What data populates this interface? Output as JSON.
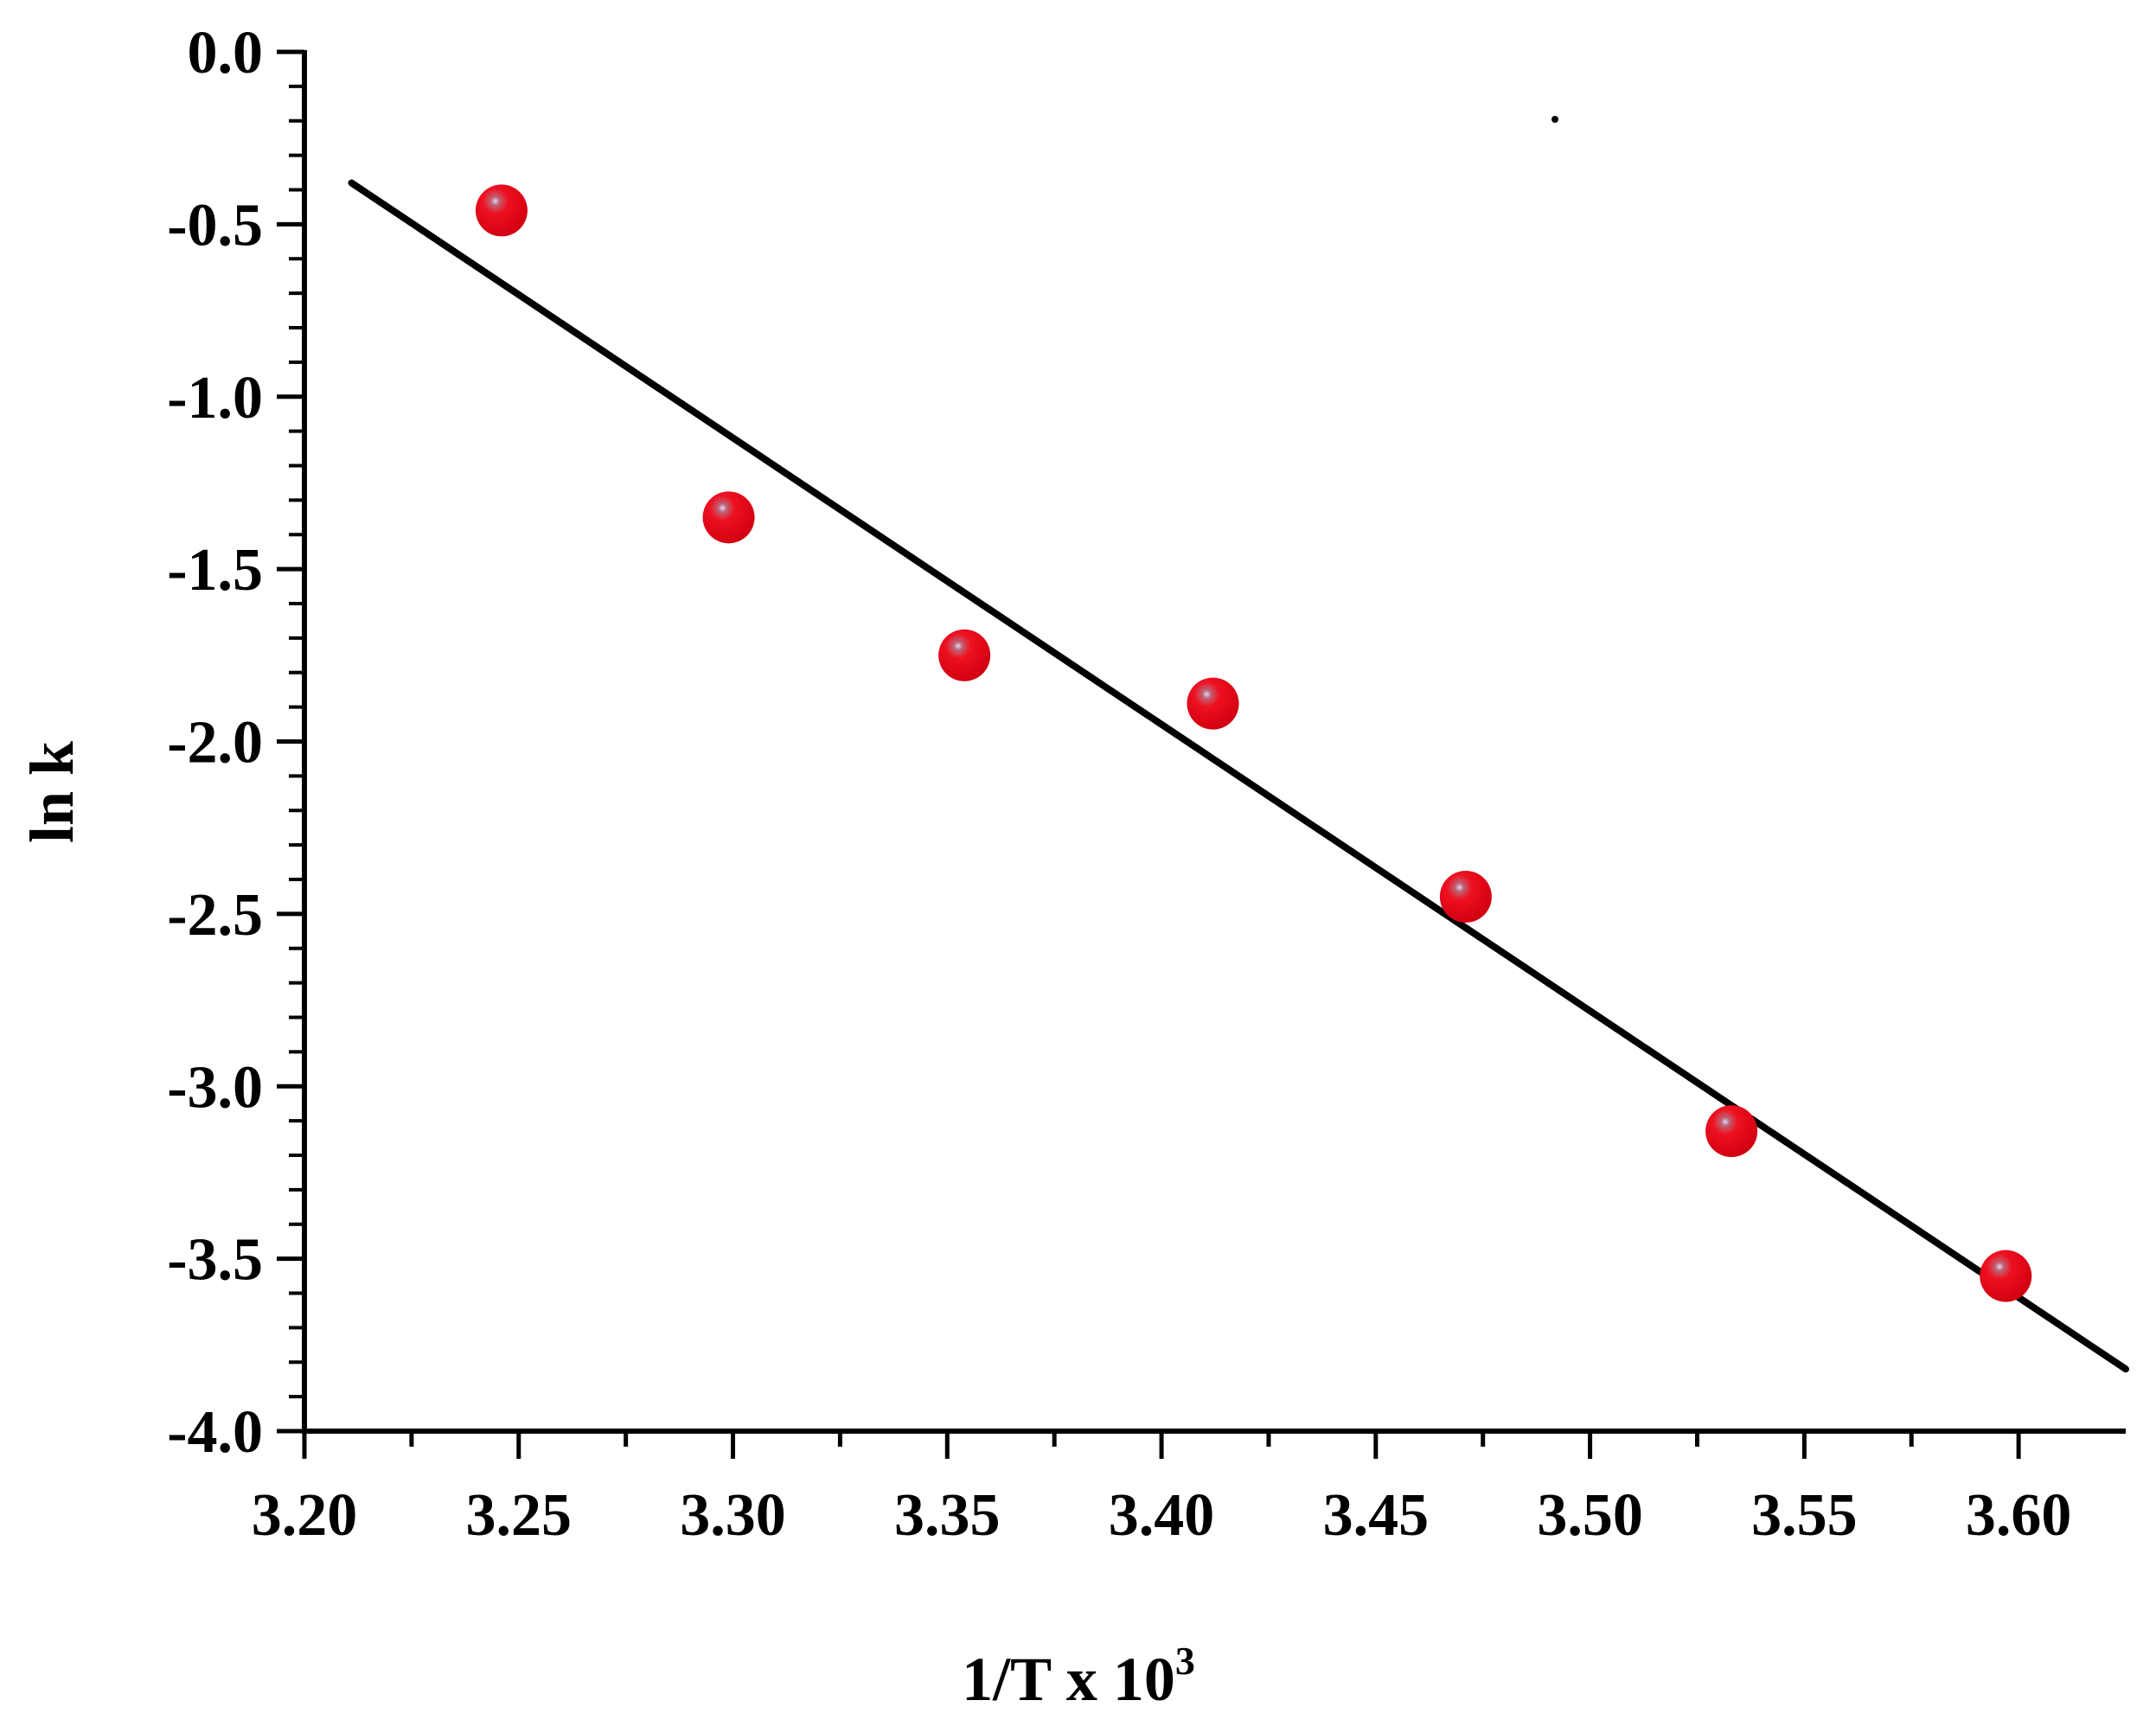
{
  "chart_data": {
    "type": "scatter",
    "title": "",
    "xlabel": "1/T x 10",
    "xlabel_sup": "3",
    "ylabel": "ln k",
    "xlim": [
      3.2,
      3.625
    ],
    "ylim": [
      -4.0,
      0.0
    ],
    "x_ticks": [
      3.2,
      3.25,
      3.3,
      3.35,
      3.4,
      3.45,
      3.5,
      3.55,
      3.6
    ],
    "x_tick_labels": [
      "3.20",
      "3.25",
      "3.30",
      "3.35",
      "3.40",
      "3.45",
      "3.50",
      "3.55",
      "3.60"
    ],
    "y_ticks": [
      0.0,
      -0.5,
      -1.0,
      -1.5,
      -2.0,
      -2.5,
      -3.0,
      -3.5,
      -4.0
    ],
    "y_tick_labels": [
      "0.0",
      "-0.5",
      "-1.0",
      "-1.5",
      "-2.0",
      "-2.5",
      "-3.0",
      "-3.5",
      "-4.0"
    ],
    "grid": false,
    "series": [
      {
        "kind": "points",
        "color": "#e8000f",
        "x": [
          3.246,
          3.299,
          3.354,
          3.412,
          3.471,
          3.533,
          3.597
        ],
        "y": [
          -0.46,
          -1.35,
          -1.75,
          -1.89,
          -2.45,
          -3.13,
          -3.55
        ]
      },
      {
        "kind": "fit-line",
        "color": "#000000",
        "x": [
          3.211,
          3.625
        ],
        "y": [
          -0.38,
          -3.82
        ]
      }
    ]
  }
}
